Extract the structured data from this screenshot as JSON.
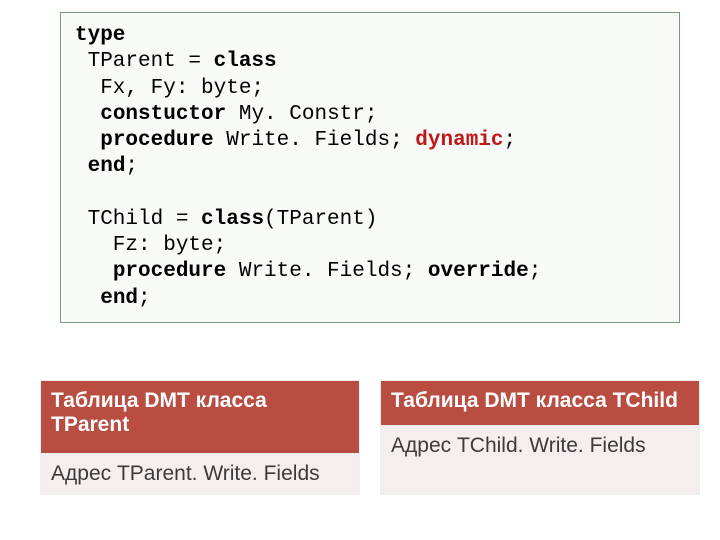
{
  "code": {
    "l1": "type",
    "l2a": " TParent = ",
    "l2b": "class",
    "l3": "  Fx, Fy: byte;",
    "l4a": "  ",
    "l4b": "constuctor",
    "l4c": " My. Constr;",
    "l5a": "  ",
    "l5b": "procedure",
    "l5c": " Write. Fields; ",
    "l5d": "dynamic",
    "l5e": ";",
    "l6a": " ",
    "l6b": "end",
    "l6c": ";",
    "l8a": " TChild = ",
    "l8b": "class",
    "l8c": "(TParent)",
    "l9": "   Fz: byte;",
    "l10a": "   ",
    "l10b": "procedure",
    "l10c": " Write. Fields; ",
    "l10d": "override",
    "l10e": ";",
    "l11a": "  ",
    "l11b": "end",
    "l11c": ";"
  },
  "table1": {
    "header": "Таблица DMT класса TParent",
    "row1": "Адрес TParent. Write. Fields"
  },
  "table2": {
    "header": "Таблица DMT класса TChild",
    "row1": "Адрес TChild. Write. Fields"
  },
  "colors": {
    "code_border": "#7a9a7a",
    "code_bg": "#f8faf8",
    "header_bg": "#b94d42",
    "header_fg": "#ffffff",
    "row_bg": "#f5eeee",
    "dynamic_color": "#c01818"
  }
}
